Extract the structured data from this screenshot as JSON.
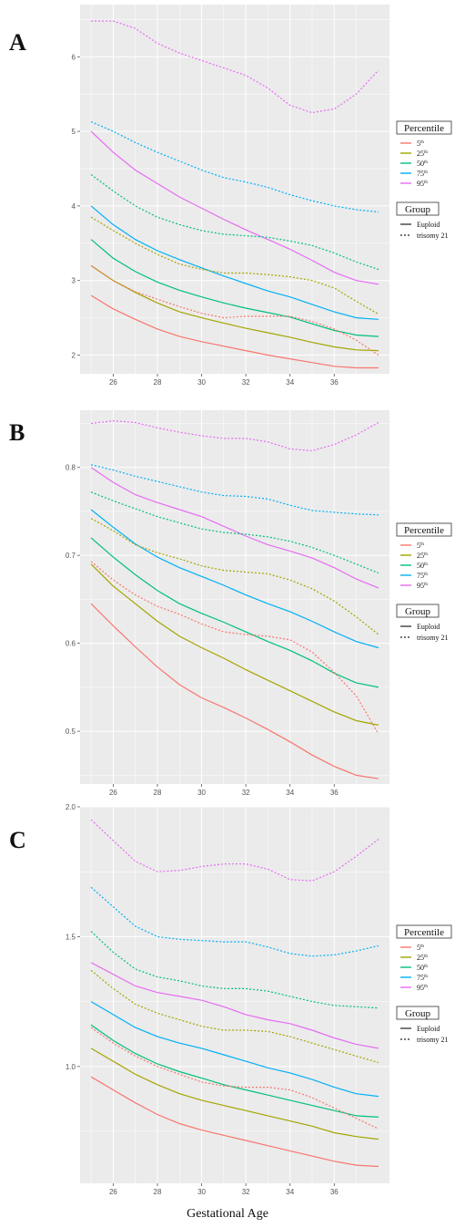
{
  "figure": {
    "x_axis_title": "Gestational Age"
  },
  "colors": {
    "5th": "#F8766D",
    "25th": "#A3A500",
    "50th": "#00BF7D",
    "75th": "#00B0F6",
    "95th": "#E76BF3",
    "panel_bg": "#EBEBEB",
    "grid": "#FFFFFF"
  },
  "legend": {
    "percentile_title": "Percentile",
    "percentiles": [
      {
        "key": "5th",
        "base": "5",
        "sup": "th"
      },
      {
        "key": "25th",
        "base": "25",
        "sup": "th"
      },
      {
        "key": "50th",
        "base": "50",
        "sup": "th"
      },
      {
        "key": "75th",
        "base": "75",
        "sup": "th"
      },
      {
        "key": "95th",
        "base": "95",
        "sup": "th"
      }
    ],
    "group_title": "Group",
    "groups": [
      {
        "label": "Euploid",
        "dash": "solid"
      },
      {
        "label": "trisomy 21",
        "dash": "dotted"
      }
    ]
  },
  "chart_data": [
    {
      "panel": "A",
      "type": "line",
      "x": [
        25,
        26,
        27,
        28,
        29,
        30,
        31,
        32,
        33,
        34,
        35,
        36,
        37,
        38
      ],
      "xticks": [
        26,
        28,
        30,
        32,
        34,
        36
      ],
      "yticks": [
        2,
        3,
        4,
        5,
        6
      ],
      "xlim": [
        24.5,
        38.5
      ],
      "ylim": [
        1.75,
        6.7
      ],
      "series": [
        {
          "percentile": "5th",
          "group": "Euploid",
          "values": [
            2.8,
            2.62,
            2.48,
            2.35,
            2.25,
            2.18,
            2.12,
            2.06,
            2.0,
            1.95,
            1.9,
            1.85,
            1.83,
            1.83
          ]
        },
        {
          "percentile": "25th",
          "group": "Euploid",
          "values": [
            3.2,
            3.0,
            2.84,
            2.7,
            2.58,
            2.5,
            2.43,
            2.36,
            2.3,
            2.24,
            2.17,
            2.11,
            2.07,
            2.06
          ]
        },
        {
          "percentile": "50th",
          "group": "Euploid",
          "values": [
            3.55,
            3.3,
            3.12,
            2.98,
            2.87,
            2.78,
            2.7,
            2.63,
            2.57,
            2.51,
            2.42,
            2.33,
            2.27,
            2.25
          ]
        },
        {
          "percentile": "75th",
          "group": "Euploid",
          "values": [
            4.0,
            3.75,
            3.55,
            3.4,
            3.28,
            3.17,
            3.06,
            2.96,
            2.86,
            2.78,
            2.68,
            2.58,
            2.5,
            2.48
          ]
        },
        {
          "percentile": "95th",
          "group": "Euploid",
          "values": [
            5.0,
            4.72,
            4.48,
            4.3,
            4.12,
            3.97,
            3.82,
            3.68,
            3.55,
            3.42,
            3.27,
            3.11,
            3.0,
            2.95
          ]
        },
        {
          "percentile": "5th",
          "group": "trisomy 21",
          "values": [
            3.2,
            3.0,
            2.85,
            2.75,
            2.65,
            2.56,
            2.5,
            2.52,
            2.52,
            2.52,
            2.45,
            2.35,
            2.2,
            2.0
          ]
        },
        {
          "percentile": "25th",
          "group": "trisomy 21",
          "values": [
            3.85,
            3.67,
            3.5,
            3.35,
            3.22,
            3.15,
            3.1,
            3.1,
            3.08,
            3.05,
            3.0,
            2.9,
            2.72,
            2.55
          ]
        },
        {
          "percentile": "50th",
          "group": "trisomy 21",
          "values": [
            4.42,
            4.2,
            4.0,
            3.85,
            3.75,
            3.67,
            3.62,
            3.6,
            3.58,
            3.53,
            3.47,
            3.37,
            3.25,
            3.15
          ]
        },
        {
          "percentile": "75th",
          "group": "trisomy 21",
          "values": [
            5.13,
            5.0,
            4.85,
            4.72,
            4.6,
            4.48,
            4.38,
            4.32,
            4.25,
            4.15,
            4.07,
            4.0,
            3.95,
            3.92
          ]
        },
        {
          "percentile": "95th",
          "group": "trisomy 21",
          "values": [
            6.48,
            6.48,
            6.38,
            6.18,
            6.05,
            5.95,
            5.85,
            5.75,
            5.58,
            5.35,
            5.25,
            5.3,
            5.5,
            5.82
          ]
        }
      ]
    },
    {
      "panel": "B",
      "type": "line",
      "x": [
        25,
        26,
        27,
        28,
        29,
        30,
        31,
        32,
        33,
        34,
        35,
        36,
        37,
        38
      ],
      "xticks": [
        26,
        28,
        30,
        32,
        34,
        36
      ],
      "yticks": [
        0.5,
        0.6,
        0.7,
        0.8
      ],
      "xlim": [
        24.5,
        38.5
      ],
      "ylim": [
        0.44,
        0.865
      ],
      "series": [
        {
          "percentile": "5th",
          "group": "Euploid",
          "values": [
            0.645,
            0.62,
            0.596,
            0.573,
            0.553,
            0.538,
            0.527,
            0.515,
            0.502,
            0.488,
            0.473,
            0.46,
            0.45,
            0.446
          ]
        },
        {
          "percentile": "25th",
          "group": "Euploid",
          "values": [
            0.69,
            0.665,
            0.645,
            0.625,
            0.608,
            0.595,
            0.583,
            0.57,
            0.558,
            0.546,
            0.534,
            0.522,
            0.512,
            0.507
          ]
        },
        {
          "percentile": "50th",
          "group": "Euploid",
          "values": [
            0.72,
            0.698,
            0.678,
            0.66,
            0.645,
            0.634,
            0.624,
            0.613,
            0.602,
            0.592,
            0.58,
            0.566,
            0.555,
            0.55
          ]
        },
        {
          "percentile": "75th",
          "group": "Euploid",
          "values": [
            0.752,
            0.732,
            0.713,
            0.698,
            0.686,
            0.676,
            0.666,
            0.655,
            0.645,
            0.636,
            0.625,
            0.613,
            0.602,
            0.595
          ]
        },
        {
          "percentile": "95th",
          "group": "Euploid",
          "values": [
            0.8,
            0.783,
            0.769,
            0.76,
            0.752,
            0.744,
            0.733,
            0.722,
            0.712,
            0.705,
            0.697,
            0.686,
            0.673,
            0.663
          ]
        },
        {
          "percentile": "5th",
          "group": "trisomy 21",
          "values": [
            0.693,
            0.672,
            0.655,
            0.642,
            0.633,
            0.622,
            0.613,
            0.61,
            0.608,
            0.604,
            0.59,
            0.567,
            0.54,
            0.497
          ]
        },
        {
          "percentile": "25th",
          "group": "trisomy 21",
          "values": [
            0.742,
            0.728,
            0.712,
            0.703,
            0.696,
            0.688,
            0.683,
            0.681,
            0.679,
            0.672,
            0.662,
            0.648,
            0.63,
            0.61
          ]
        },
        {
          "percentile": "50th",
          "group": "trisomy 21",
          "values": [
            0.772,
            0.762,
            0.753,
            0.744,
            0.737,
            0.73,
            0.726,
            0.724,
            0.721,
            0.716,
            0.709,
            0.7,
            0.69,
            0.68
          ]
        },
        {
          "percentile": "75th",
          "group": "trisomy 21",
          "values": [
            0.803,
            0.797,
            0.79,
            0.784,
            0.778,
            0.772,
            0.768,
            0.767,
            0.764,
            0.757,
            0.751,
            0.749,
            0.747,
            0.746
          ]
        },
        {
          "percentile": "95th",
          "group": "trisomy 21",
          "values": [
            0.85,
            0.853,
            0.851,
            0.845,
            0.84,
            0.836,
            0.833,
            0.833,
            0.829,
            0.821,
            0.819,
            0.826,
            0.837,
            0.851
          ]
        }
      ]
    },
    {
      "panel": "C",
      "type": "line",
      "x": [
        25,
        26,
        27,
        28,
        29,
        30,
        31,
        32,
        33,
        34,
        35,
        36,
        37,
        38
      ],
      "xticks": [
        26,
        28,
        30,
        32,
        34,
        36
      ],
      "yticks": [
        1.0,
        1.5,
        2.0
      ],
      "ytick_labels": [
        "1.0",
        "1.5",
        "2.0"
      ],
      "xlim": [
        24.5,
        38.5
      ],
      "ylim": [
        0.55,
        2.0
      ],
      "series": [
        {
          "percentile": "5th",
          "group": "Euploid",
          "values": [
            0.96,
            0.91,
            0.86,
            0.815,
            0.78,
            0.755,
            0.735,
            0.715,
            0.695,
            0.675,
            0.655,
            0.635,
            0.62,
            0.615
          ]
        },
        {
          "percentile": "25th",
          "group": "Euploid",
          "values": [
            1.07,
            1.02,
            0.97,
            0.93,
            0.895,
            0.87,
            0.85,
            0.83,
            0.81,
            0.79,
            0.77,
            0.745,
            0.73,
            0.72
          ]
        },
        {
          "percentile": "50th",
          "group": "Euploid",
          "values": [
            1.16,
            1.1,
            1.05,
            1.01,
            0.98,
            0.955,
            0.93,
            0.91,
            0.89,
            0.87,
            0.85,
            0.83,
            0.81,
            0.805
          ]
        },
        {
          "percentile": "75th",
          "group": "Euploid",
          "values": [
            1.25,
            1.2,
            1.15,
            1.115,
            1.09,
            1.07,
            1.045,
            1.02,
            0.995,
            0.975,
            0.95,
            0.92,
            0.895,
            0.885
          ]
        },
        {
          "percentile": "95th",
          "group": "Euploid",
          "values": [
            1.4,
            1.355,
            1.31,
            1.285,
            1.27,
            1.255,
            1.23,
            1.2,
            1.18,
            1.165,
            1.14,
            1.11,
            1.085,
            1.07
          ]
        },
        {
          "percentile": "5th",
          "group": "trisomy 21",
          "values": [
            1.15,
            1.09,
            1.04,
            1.0,
            0.97,
            0.94,
            0.925,
            0.92,
            0.92,
            0.91,
            0.88,
            0.84,
            0.8,
            0.76
          ]
        },
        {
          "percentile": "25th",
          "group": "trisomy 21",
          "values": [
            1.37,
            1.3,
            1.24,
            1.205,
            1.18,
            1.155,
            1.14,
            1.14,
            1.135,
            1.115,
            1.09,
            1.065,
            1.04,
            1.015
          ]
        },
        {
          "percentile": "50th",
          "group": "trisomy 21",
          "values": [
            1.52,
            1.44,
            1.375,
            1.345,
            1.33,
            1.31,
            1.3,
            1.3,
            1.29,
            1.27,
            1.25,
            1.235,
            1.23,
            1.225
          ]
        },
        {
          "percentile": "75th",
          "group": "trisomy 21",
          "values": [
            1.69,
            1.615,
            1.54,
            1.5,
            1.49,
            1.485,
            1.48,
            1.48,
            1.46,
            1.435,
            1.425,
            1.43,
            1.445,
            1.465
          ]
        },
        {
          "percentile": "95th",
          "group": "trisomy 21",
          "values": [
            1.95,
            1.87,
            1.79,
            1.75,
            1.755,
            1.77,
            1.78,
            1.78,
            1.76,
            1.72,
            1.715,
            1.75,
            1.81,
            1.875
          ]
        }
      ]
    }
  ]
}
